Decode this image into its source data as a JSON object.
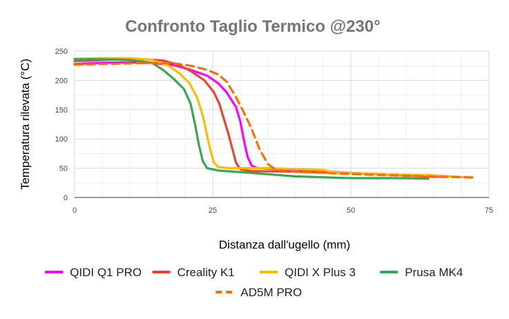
{
  "chart_data": {
    "type": "line",
    "title": "Confronto Taglio Termico @230°",
    "xlabel": "Distanza dall'ugello (mm)",
    "ylabel": "Temperatura rilevata (°C)",
    "xlim": [
      0,
      75
    ],
    "ylim": [
      0,
      250
    ],
    "xticks": [
      "0",
      "25",
      "50",
      "75"
    ],
    "yticks": [
      "0",
      "50",
      "100",
      "150",
      "200",
      "250"
    ],
    "grid": true,
    "legend_position": "bottom",
    "series": [
      {
        "name": "QIDI Q1 PRO",
        "color": "#ff00ff",
        "dashed": false,
        "points": [
          [
            0,
            228
          ],
          [
            5,
            230
          ],
          [
            10,
            231
          ],
          [
            14,
            230
          ],
          [
            18,
            226
          ],
          [
            21,
            218
          ],
          [
            24,
            208
          ],
          [
            26,
            195
          ],
          [
            27.5,
            180
          ],
          [
            28.5,
            165
          ],
          [
            29.2,
            155
          ],
          [
            30,
            130
          ],
          [
            30.7,
            95
          ],
          [
            31.3,
            70
          ],
          [
            32,
            55
          ],
          [
            33,
            50
          ],
          [
            40,
            47
          ],
          [
            50,
            42
          ],
          [
            60,
            38
          ],
          [
            67,
            35
          ]
        ]
      },
      {
        "name": "Creality K1",
        "color": "#ea4335",
        "dashed": false,
        "points": [
          [
            0,
            233
          ],
          [
            6,
            235
          ],
          [
            11,
            237
          ],
          [
            16,
            234
          ],
          [
            19,
            226
          ],
          [
            21,
            216
          ],
          [
            23.5,
            200
          ],
          [
            25.2,
            180
          ],
          [
            26.2,
            160
          ],
          [
            27,
            135
          ],
          [
            27.8,
            110
          ],
          [
            28.5,
            85
          ],
          [
            29.2,
            60
          ],
          [
            30,
            48
          ],
          [
            32,
            45
          ],
          [
            40,
            44
          ],
          [
            50,
            42
          ],
          [
            60,
            38
          ],
          [
            65,
            35
          ]
        ]
      },
      {
        "name": "QIDI X Plus 3",
        "color": "#fbbc04",
        "dashed": false,
        "points": [
          [
            0,
            237
          ],
          [
            5,
            238
          ],
          [
            10,
            238
          ],
          [
            14,
            235
          ],
          [
            17,
            225
          ],
          [
            19,
            212
          ],
          [
            20.8,
            195
          ],
          [
            22.2,
            170
          ],
          [
            23.2,
            140
          ],
          [
            24,
            105
          ],
          [
            24.6,
            80
          ],
          [
            25.2,
            60
          ],
          [
            26,
            52
          ],
          [
            28,
            50
          ],
          [
            35,
            50
          ],
          [
            45,
            47
          ],
          [
            47,
            43
          ],
          [
            55,
            40
          ],
          [
            65,
            38
          ],
          [
            70,
            35
          ],
          [
            72,
            35
          ]
        ]
      },
      {
        "name": "Prusa MK4",
        "color": "#34a853",
        "dashed": false,
        "points": [
          [
            0,
            236
          ],
          [
            5,
            236
          ],
          [
            10,
            235
          ],
          [
            14,
            230
          ],
          [
            16,
            218
          ],
          [
            18,
            202
          ],
          [
            19.8,
            185
          ],
          [
            21,
            160
          ],
          [
            21.8,
            125
          ],
          [
            22.5,
            90
          ],
          [
            23.2,
            62
          ],
          [
            24,
            50
          ],
          [
            26,
            46
          ],
          [
            32,
            42
          ],
          [
            40,
            36
          ],
          [
            50,
            33
          ],
          [
            60,
            33
          ],
          [
            64,
            32
          ]
        ]
      },
      {
        "name": "AD5M PRO",
        "color": "#ff6d01",
        "dashed": true,
        "points": [
          [
            0,
            227
          ],
          [
            5,
            228
          ],
          [
            10,
            229
          ],
          [
            14,
            230
          ],
          [
            18,
            229
          ],
          [
            21,
            225
          ],
          [
            24,
            218
          ],
          [
            26,
            210
          ],
          [
            27.5,
            198
          ],
          [
            29,
            175
          ],
          [
            30.5,
            148
          ],
          [
            32,
            118
          ],
          [
            33.5,
            82
          ],
          [
            35,
            57
          ],
          [
            36.5,
            47
          ],
          [
            40,
            44
          ],
          [
            50,
            40
          ],
          [
            60,
            37
          ],
          [
            72,
            34
          ]
        ]
      }
    ]
  }
}
